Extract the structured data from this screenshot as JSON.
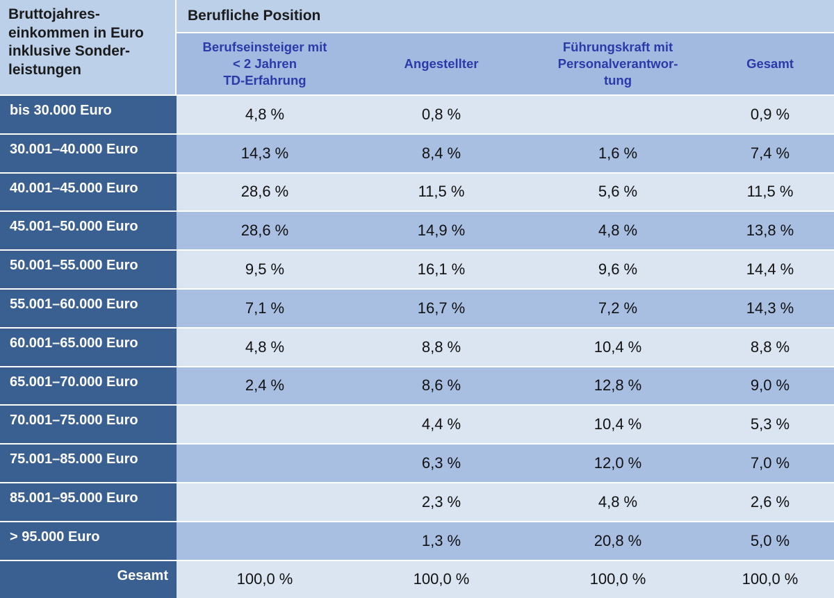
{
  "header": {
    "corner": "Bruttojahres-\neinkommen in Euro\ninklusive Sonder-\nleistungen",
    "position_title": "Berufliche Position",
    "columns": [
      "Berufseinsteiger mit\n< 2 Jahren\nTD-Erfahrung",
      "Angestellter",
      "Führungskraft mit\nPersonalverantwor-\ntung",
      "Gesamt"
    ]
  },
  "rows": [
    {
      "label": "bis 30.000 Euro",
      "values": [
        "4,8 %",
        "0,8 %",
        "",
        "0,9 %"
      ]
    },
    {
      "label": "30.001–40.000 Euro",
      "values": [
        "14,3 %",
        "8,4 %",
        "1,6 %",
        "7,4 %"
      ]
    },
    {
      "label": "40.001–45.000 Euro",
      "values": [
        "28,6 %",
        "11,5 %",
        "5,6 %",
        "11,5 %"
      ]
    },
    {
      "label": "45.001–50.000 Euro",
      "values": [
        "28,6 %",
        "14,9 %",
        "4,8 %",
        "13,8 %"
      ]
    },
    {
      "label": "50.001–55.000 Euro",
      "values": [
        "9,5 %",
        "16,1 %",
        "9,6 %",
        "14,4 %"
      ]
    },
    {
      "label": "55.001–60.000 Euro",
      "values": [
        "7,1 %",
        "16,7 %",
        "7,2 %",
        "14,3 %"
      ]
    },
    {
      "label": "60.001–65.000 Euro",
      "values": [
        "4,8 %",
        "8,8 %",
        "10,4 %",
        "8,8 %"
      ]
    },
    {
      "label": "65.001–70.000 Euro",
      "values": [
        "2,4 %",
        "8,6 %",
        "12,8 %",
        "9,0 %"
      ]
    },
    {
      "label": "70.001–75.000 Euro",
      "values": [
        "",
        "4,4 %",
        "10,4 %",
        "5,3 %"
      ]
    },
    {
      "label": "75.001–85.000 Euro",
      "values": [
        "",
        "6,3 %",
        "12,0 %",
        "7,0 %"
      ]
    },
    {
      "label": "85.001–95.000 Euro",
      "values": [
        "",
        "2,3 %",
        "4,8 %",
        "2,6 %"
      ]
    },
    {
      "label": "> 95.000 Euro",
      "values": [
        "",
        "1,3 %",
        "20,8 %",
        "5,0 %"
      ]
    },
    {
      "label": "Gesamt",
      "values": [
        "100,0 %",
        "100,0 %",
        "100,0 %",
        "100,0 %"
      ]
    }
  ],
  "colors": {
    "header_light": "#bcd0ea",
    "header_columns": "#a3bae0",
    "column_text": "#2a3aa8",
    "row_label": "#3a5f91",
    "row_light": "#dbe5f1",
    "row_dark": "#a8bfe2"
  }
}
